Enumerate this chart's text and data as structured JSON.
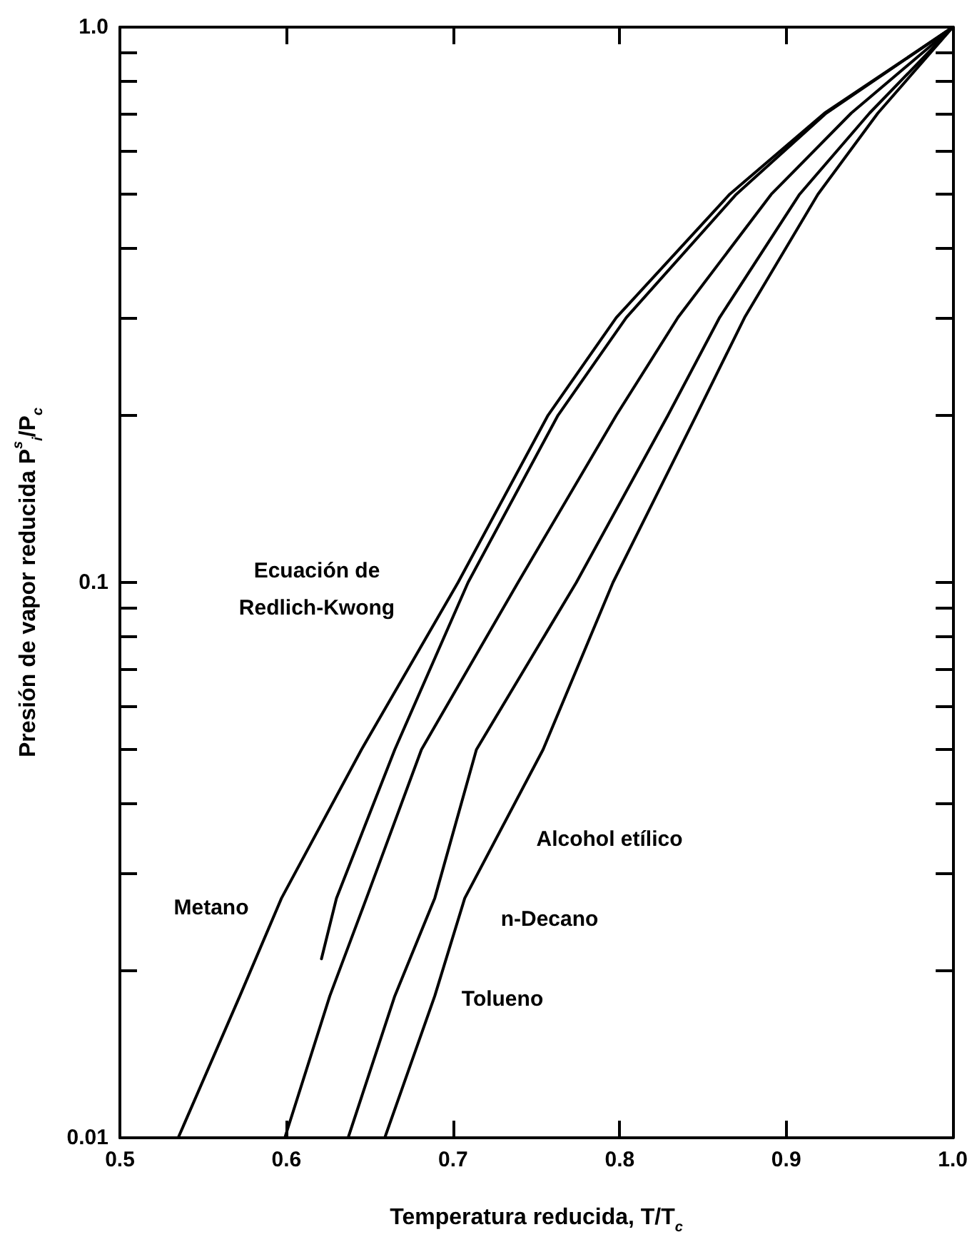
{
  "chart_data": {
    "type": "line",
    "xlabel": "Temperatura reducida, T/T$_{c}$",
    "ylabel": "Presión de vapor reducida P$^{s}$$_{i}$/P$_{c}$",
    "log": "y",
    "grid": false,
    "marker": "none",
    "line_style": "solid",
    "xlim": [
      0.5,
      1.0
    ],
    "xticks": [
      0.5,
      0.6,
      0.7,
      0.8,
      0.9,
      {
        "value": 1,
        "label": "1.0"
      }
    ],
    "ylim": [
      0.01,
      1.0
    ],
    "yticks": [
      0.01,
      {
        "value": 0.02,
        "label": null
      },
      {
        "value": 0.03,
        "label": null
      },
      {
        "value": 0.04,
        "label": null
      },
      {
        "value": 0.05,
        "label": null
      },
      {
        "value": 0.06,
        "label": null
      },
      {
        "value": 0.07,
        "label": null
      },
      {
        "value": 0.08,
        "label": null
      },
      {
        "value": 0.09,
        "label": null
      },
      0.1,
      {
        "value": 0.2,
        "label": null
      },
      {
        "value": 0.3,
        "label": null
      },
      {
        "value": 0.4,
        "label": null
      },
      {
        "value": 0.5,
        "label": null
      },
      {
        "value": 0.6,
        "label": null
      },
      {
        "value": 0.7,
        "label": null
      },
      {
        "value": 0.8,
        "label": null
      },
      {
        "value": 0.9,
        "label": null
      },
      {
        "value": 1,
        "label": "1.0"
      }
    ],
    "series": [
      {
        "color": "#000000",
        "x": [
          0.535,
          0.572,
          0.597,
          0.645,
          0.703,
          0.757,
          0.798,
          0.866,
          0.923,
          1.0
        ],
        "values": [
          0.01,
          0.018,
          0.027,
          0.05,
          0.1,
          0.2,
          0.3,
          0.5,
          0.7,
          1.0
        ]
      },
      {
        "color": "#000000",
        "x": [
          0.621,
          0.63,
          0.665,
          0.709,
          0.763,
          0.804,
          0.87,
          0.924,
          1.0
        ],
        "values": [
          0.021,
          0.027,
          0.05,
          0.1,
          0.2,
          0.3,
          0.5,
          0.7,
          1.0
        ]
      },
      {
        "color": "#000000",
        "x": [
          0.599,
          0.626,
          0.648,
          0.681,
          0.739,
          0.798,
          0.835,
          0.891,
          0.939,
          1.0
        ],
        "values": [
          0.01,
          0.018,
          0.027,
          0.05,
          0.1,
          0.2,
          0.3,
          0.5,
          0.7,
          1.0
        ]
      },
      {
        "color": "#000000",
        "x": [
          0.637,
          0.665,
          0.689,
          0.714,
          0.774,
          0.829,
          0.86,
          0.908,
          0.95,
          1.0
        ],
        "values": [
          0.01,
          0.018,
          0.027,
          0.05,
          0.1,
          0.2,
          0.3,
          0.5,
          0.7,
          1.0
        ]
      },
      {
        "color": "#000000",
        "x": [
          0.659,
          0.689,
          0.707,
          0.754,
          0.796,
          0.846,
          0.875,
          0.919,
          0.955,
          1.0
        ],
        "values": [
          0.01,
          0.018,
          0.027,
          0.05,
          0.1,
          0.2,
          0.3,
          0.5,
          0.7,
          1.0
        ]
      }
    ],
    "annotations": [
      "Ecuación de\nRedlich-Kwong",
      "Metano",
      "Alcohol etílico",
      "n-Decano",
      "Tolueno"
    ]
  }
}
